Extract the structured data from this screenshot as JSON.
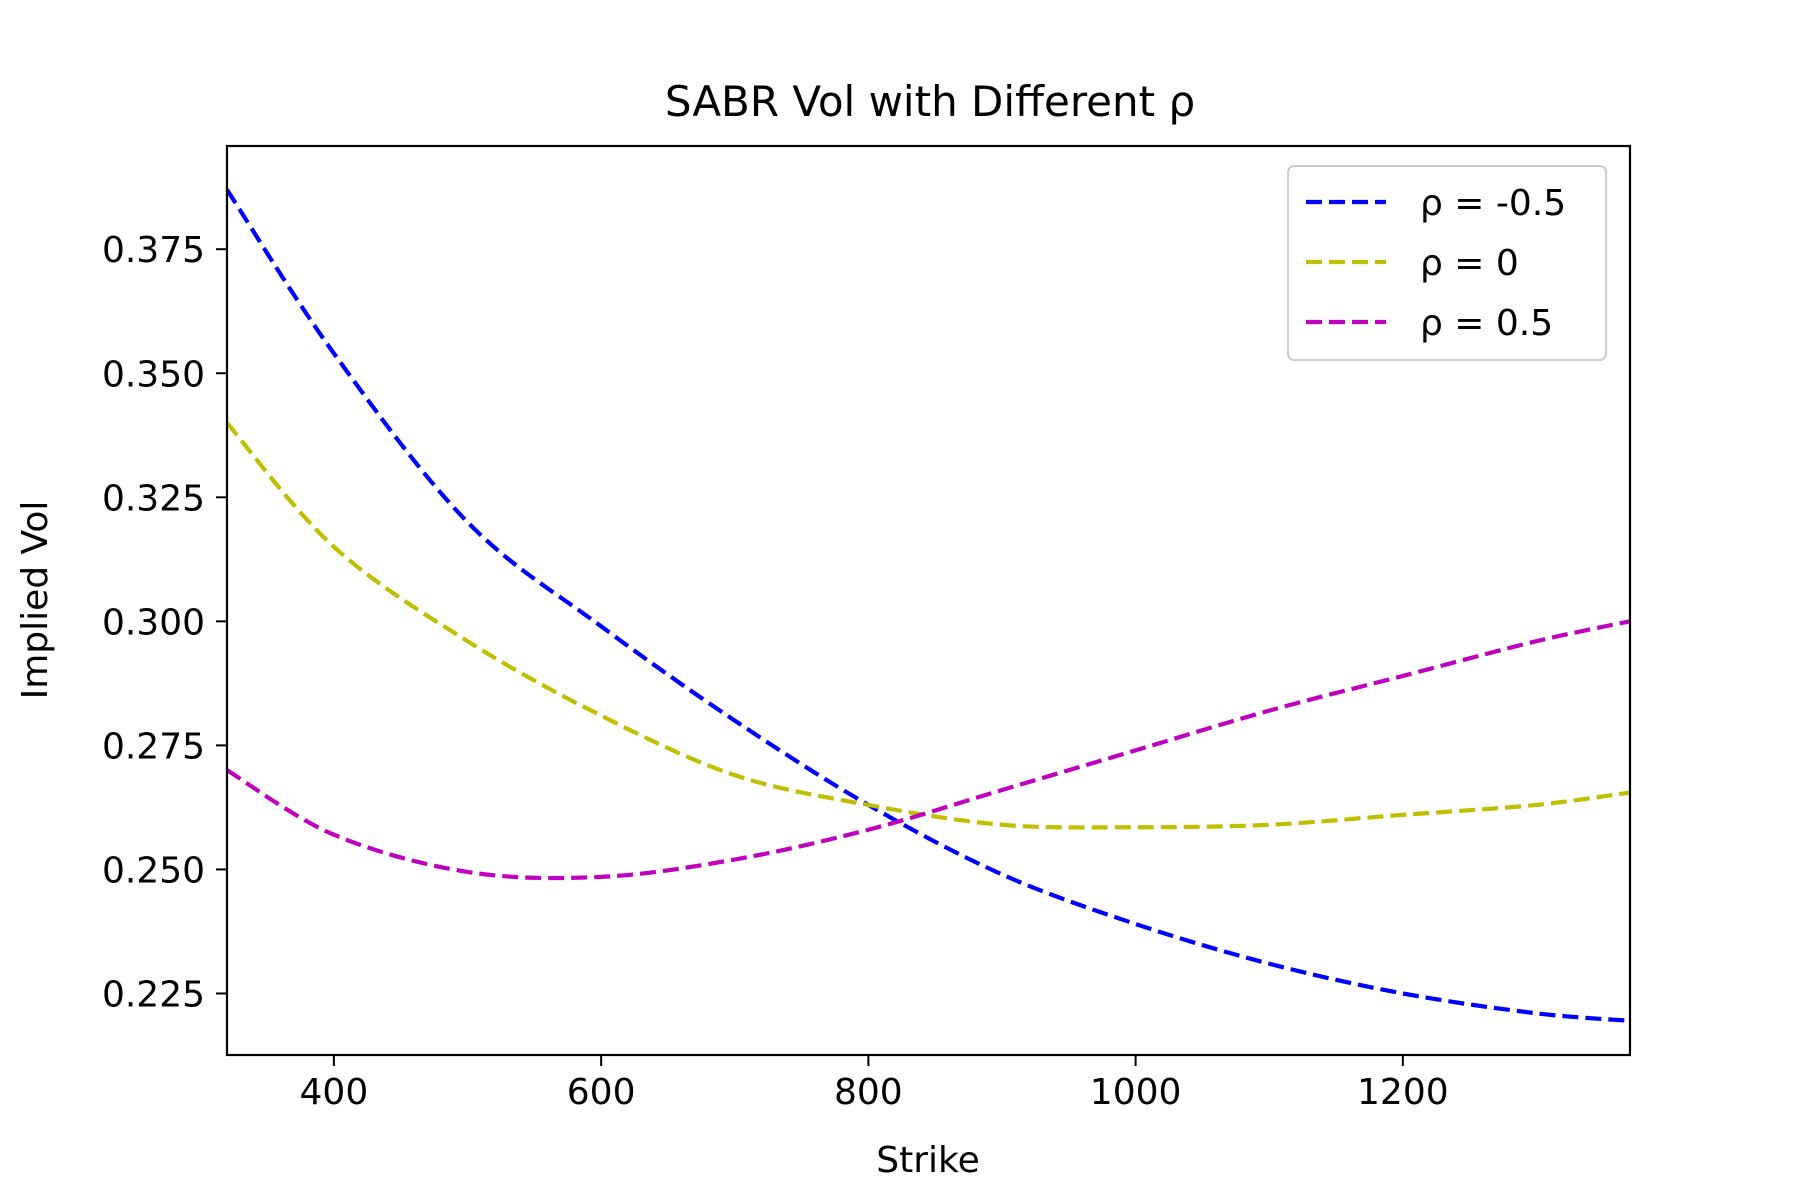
{
  "chart_data": {
    "type": "line",
    "title": "SABR Vol with Different ρ",
    "xlabel": "Strike",
    "ylabel": "Implied Vol",
    "xlim": [
      320,
      1370
    ],
    "ylim": [
      0.2126,
      0.3958
    ],
    "xticks": [
      400,
      600,
      800,
      1000,
      1200
    ],
    "xtick_labels": [
      "400",
      "600",
      "800",
      "1000",
      "1200"
    ],
    "yticks": [
      0.225,
      0.25,
      0.275,
      0.3,
      0.325,
      0.35,
      0.375
    ],
    "ytick_labels": [
      "0.225",
      "0.250",
      "0.275",
      "0.300",
      "0.325",
      "0.350",
      "0.375"
    ],
    "grid": false,
    "legend_position": "top-right",
    "x": [
      320,
      400,
      500,
      600,
      700,
      800,
      900,
      1000,
      1100,
      1200,
      1300,
      1370
    ],
    "series": [
      {
        "name": "ρ = -0.5",
        "color": "#0000ff",
        "values": [
          0.387,
          0.354,
          0.32,
          0.299,
          0.28,
          0.263,
          0.249,
          0.239,
          0.231,
          0.225,
          0.221,
          0.2195
        ]
      },
      {
        "name": "ρ = 0",
        "color": "#bfbf00",
        "values": [
          0.34,
          0.315,
          0.296,
          0.281,
          0.269,
          0.263,
          0.259,
          0.2585,
          0.259,
          0.261,
          0.263,
          0.2655
        ]
      },
      {
        "name": "ρ = 0.5",
        "color": "#bf00bf",
        "values": [
          0.27,
          0.257,
          0.2495,
          0.2485,
          0.252,
          0.258,
          0.266,
          0.274,
          0.282,
          0.289,
          0.296,
          0.3
        ]
      }
    ]
  }
}
